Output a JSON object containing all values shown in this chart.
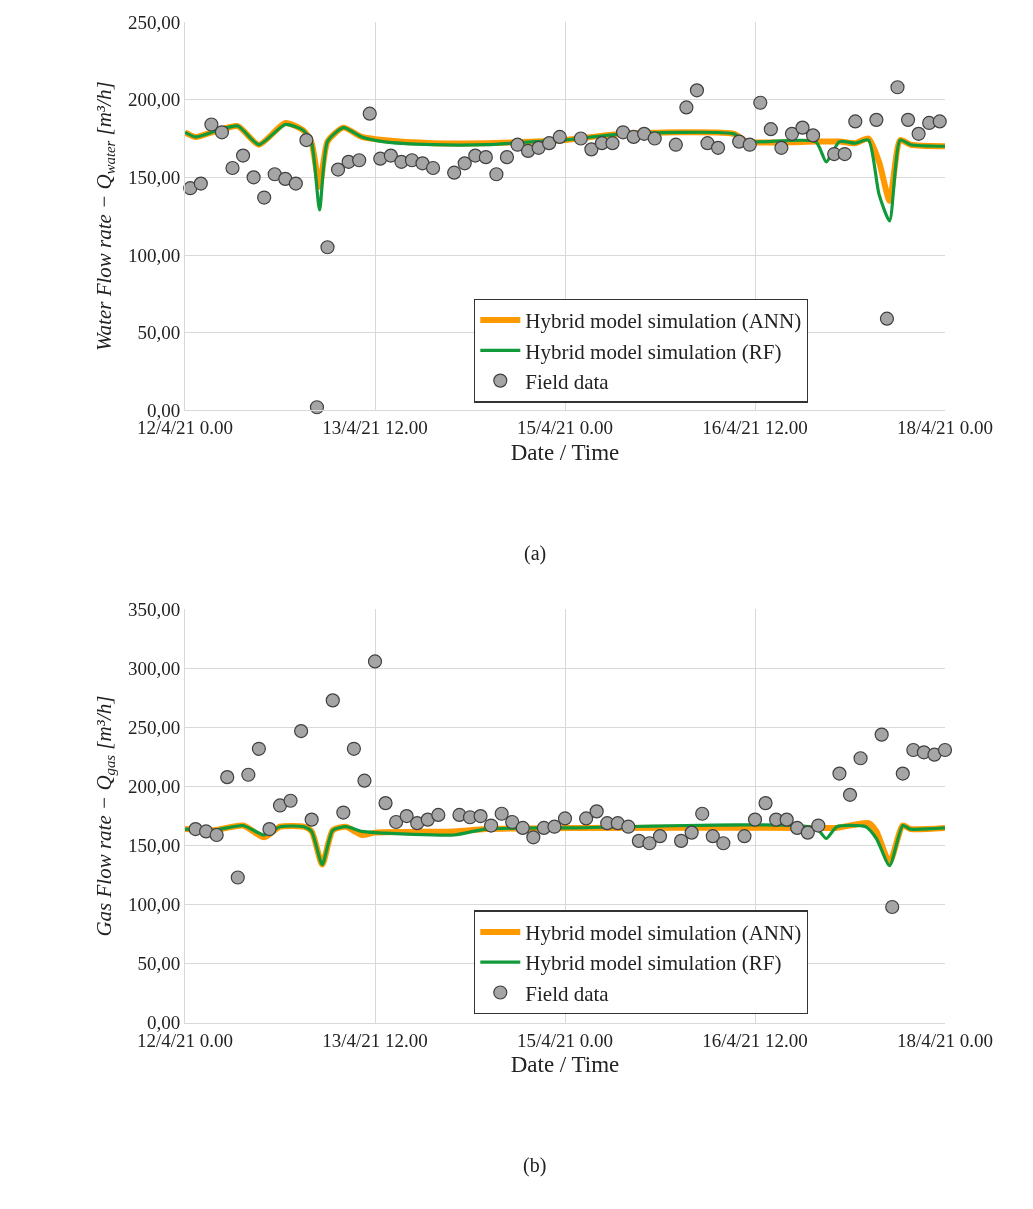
{
  "chart_data": [
    {
      "type": "line",
      "xlabel": "Date / Time",
      "ylabel": "Water Flow rate − Q$_{water}$ [m³/h]",
      "annotations": [
        "(a)"
      ],
      "xlim": [
        "--04-12T00:00",
        "--04-18T00:00"
      ],
      "xticks": [
        {
          "value": "--04-12T00:00",
          "label": "12/4/21 0.00"
        },
        {
          "value": "--04-13T12:00",
          "label": "13/4/21 12.00"
        },
        {
          "value": "--04-15T00:00",
          "label": "15/4/21 0.00"
        },
        {
          "value": "--04-16T12:00",
          "label": "16/4/21 12.00"
        },
        {
          "value": "--04-18T00:00",
          "label": "18/4/21 0.00"
        }
      ],
      "ylim": [
        0,
        250
      ],
      "yticks": [
        {
          "value": 0,
          "label": "0,00"
        },
        {
          "value": 50,
          "label": "50,00"
        },
        {
          "value": 100,
          "label": "100,00"
        },
        {
          "value": 150,
          "label": "150,00"
        },
        {
          "value": 200,
          "label": "200,00"
        },
        {
          "value": 250,
          "label": "250,00"
        }
      ],
      "grid": true,
      "legend": "bottom",
      "line_style": "solid",
      "series": [
        {
          "name": "Hybrid model simulation (ANN)",
          "type": "line",
          "marker": "none",
          "color": "#ff9900",
          "x": [
            "--04-12T00:00",
            "--04-12T02:00",
            "--04-12T06:00",
            "--04-12T10:00",
            "--04-12T14:00",
            "--04-12T19:00",
            "--04-12T22:30",
            "--04-13T00:00",
            "--04-13T01:30",
            "--04-13T03:00",
            "--04-13T06:00",
            "--04-13T09:30",
            "--04-13T13:30",
            "--04-13T23:00",
            "--04-14T09:00",
            "--04-14T18:30",
            "--04-15T00:00",
            "--04-15T11:00",
            "--04-16T08:00",
            "--04-16T10:30",
            "--04-16T23:30",
            "--04-17T04:00",
            "--04-17T07:00",
            "--04-17T09:30",
            "--04-17T11:30",
            "--04-17T13:30",
            "--04-17T15:30",
            "--04-17T17:30",
            "--04-18T00:00"
          ],
          "values": [
            179,
            176,
            180,
            183,
            171,
            185,
            180,
            172,
            144,
            173,
            182,
            176,
            174,
            172,
            172,
            173,
            174,
            178,
            178,
            173,
            173,
            173,
            172,
            175,
            160,
            135,
            174,
            171,
            170
          ]
        },
        {
          "name": "Hybrid model simulation (RF)",
          "type": "line",
          "marker": "none",
          "color": "#109a3a",
          "x": [
            "--04-12T00:00",
            "--04-12T02:00",
            "--04-12T06:00",
            "--04-12T10:00",
            "--04-12T14:00",
            "--04-12T19:00",
            "--04-12T22:30",
            "--04-13T00:00",
            "--04-13T01:30",
            "--04-13T03:00",
            "--04-13T06:00",
            "--04-13T09:30",
            "--04-13T13:30",
            "--04-13T23:00",
            "--04-14T09:00",
            "--04-14T18:30",
            "--04-15T00:00",
            "--04-15T11:00",
            "--04-16T08:00",
            "--04-16T10:30",
            "--04-16T23:30",
            "--04-17T01:30",
            "--04-17T04:00",
            "--04-17T07:00",
            "--04-17T09:30",
            "--04-17T11:30",
            "--04-17T13:30",
            "--04-17T15:30",
            "--04-17T17:30",
            "--04-18T00:00"
          ],
          "values": [
            179,
            176,
            180,
            183,
            171,
            184,
            180,
            172,
            129,
            173,
            182,
            176,
            173,
            171,
            171,
            173,
            174,
            178,
            178,
            173,
            173,
            160,
            173,
            172,
            174,
            139,
            122,
            174,
            171,
            170
          ]
        },
        {
          "name": "Field data",
          "type": "scatter",
          "marker": "circle",
          "color": "#a5a5a5",
          "x": [
            "--04-12T01:00",
            "--04-12T03:00",
            "--04-12T05:00",
            "--04-12T07:00",
            "--04-12T09:00",
            "--04-12T11:00",
            "--04-12T13:00",
            "--04-12T15:00",
            "--04-12T17:00",
            "--04-12T19:00",
            "--04-12T21:00",
            "--04-12T23:00",
            "--04-13T01:00",
            "--04-13T03:00",
            "--04-13T05:00",
            "--04-13T07:00",
            "--04-13T09:00",
            "--04-13T11:00",
            "--04-13T13:00",
            "--04-13T15:00",
            "--04-13T17:00",
            "--04-13T19:00",
            "--04-13T21:00",
            "--04-13T23:00",
            "--04-14T03:00",
            "--04-14T05:00",
            "--04-14T07:00",
            "--04-14T09:00",
            "--04-14T11:00",
            "--04-14T13:00",
            "--04-14T15:00",
            "--04-14T17:00",
            "--04-14T19:00",
            "--04-14T21:00",
            "--04-14T23:00",
            "--04-15T03:00",
            "--04-15T05:00",
            "--04-15T07:00",
            "--04-15T09:00",
            "--04-15T11:00",
            "--04-15T13:00",
            "--04-15T15:00",
            "--04-15T17:00",
            "--04-15T21:00",
            "--04-15T23:00",
            "--04-16T01:00",
            "--04-16T03:00",
            "--04-16T05:00",
            "--04-16T09:00",
            "--04-16T11:00",
            "--04-16T13:00",
            "--04-16T15:00",
            "--04-16T17:00",
            "--04-16T19:00",
            "--04-16T21:00",
            "--04-16T23:00",
            "--04-17T03:00",
            "--04-17T05:00",
            "--04-17T07:00",
            "--04-17T11:00",
            "--04-17T13:00",
            "--04-17T15:00",
            "--04-17T17:00",
            "--04-17T19:00",
            "--04-17T21:00",
            "--04-17T23:00"
          ],
          "values": [
            143,
            146,
            184,
            179,
            156,
            164,
            150,
            137,
            152,
            149,
            146,
            174,
            2,
            105,
            155,
            160,
            161,
            191,
            162,
            164,
            160,
            161,
            159,
            156,
            153,
            159,
            164,
            163,
            152,
            163,
            171,
            167,
            169,
            172,
            176,
            175,
            168,
            172,
            172,
            179,
            176,
            178,
            175,
            171,
            195,
            206,
            172,
            169,
            173,
            171,
            198,
            181,
            169,
            178,
            182,
            177,
            165,
            165,
            186,
            187,
            59,
            208,
            187,
            178,
            185,
            186
          ]
        }
      ]
    },
    {
      "type": "line",
      "xlabel": "Date / Time",
      "ylabel": "Gas Flow rate − Q$_{gas}$ [m³/h]",
      "annotations": [
        "(b)"
      ],
      "xlim": [
        "--04-12T00:00",
        "--04-18T00:00"
      ],
      "xticks": [
        {
          "value": "--04-12T00:00",
          "label": "12/4/21 0.00"
        },
        {
          "value": "--04-13T12:00",
          "label": "13/4/21 12.00"
        },
        {
          "value": "--04-15T00:00",
          "label": "15/4/21 0.00"
        },
        {
          "value": "--04-16T12:00",
          "label": "16/4/21 12.00"
        },
        {
          "value": "--04-18T00:00",
          "label": "18/4/21 0.00"
        }
      ],
      "ylim": [
        0,
        350
      ],
      "yticks": [
        {
          "value": 0,
          "label": "0,00"
        },
        {
          "value": 50,
          "label": "50,00"
        },
        {
          "value": 100,
          "label": "100,00"
        },
        {
          "value": 150,
          "label": "150,00"
        },
        {
          "value": 200,
          "label": "200,00"
        },
        {
          "value": 250,
          "label": "250,00"
        },
        {
          "value": 300,
          "label": "300,00"
        },
        {
          "value": 350,
          "label": "350,00"
        }
      ],
      "grid": true,
      "legend": "bottom",
      "line_style": "solid",
      "series": [
        {
          "name": "Hybrid model simulation (ANN)",
          "type": "line",
          "marker": "none",
          "color": "#ff9900",
          "x": [
            "--04-12T00:00",
            "--04-12T05:30",
            "--04-12T11:00",
            "--04-12T15:00",
            "--04-12T18:00",
            "--04-12T22:30",
            "--04-13T00:00",
            "--04-13T02:00",
            "--04-13T04:00",
            "--04-13T06:30",
            "--04-13T09:30",
            "--04-13T12:00",
            "--04-14T03:00",
            "--04-14T09:00",
            "--04-15T01:00",
            "--04-16T23:30",
            "--04-17T03:30",
            "--04-17T09:30",
            "--04-17T11:00",
            "--04-17T13:30",
            "--04-17T16:00",
            "--04-17T17:30",
            "--04-18T00:00"
          ],
          "values": [
            164,
            163,
            167,
            157,
            166,
            166,
            162,
            134,
            163,
            166,
            159,
            161,
            162,
            164,
            165,
            165,
            165,
            169,
            162,
            136,
            167,
            164,
            165
          ]
        },
        {
          "name": "Hybrid model simulation (RF)",
          "type": "line",
          "marker": "none",
          "color": "#109a3a",
          "x": [
            "--04-12T00:00",
            "--04-12T05:30",
            "--04-12T11:00",
            "--04-12T15:00",
            "--04-12T18:00",
            "--04-12T22:30",
            "--04-13T00:00",
            "--04-13T02:00",
            "--04-13T04:00",
            "--04-13T06:30",
            "--04-13T09:30",
            "--04-13T12:00",
            "--04-14T03:00",
            "--04-14T09:00",
            "--04-15T01:00",
            "--04-16T23:30",
            "--04-17T01:30",
            "--04-17T03:30",
            "--04-17T09:00",
            "--04-17T11:00",
            "--04-17T13:30",
            "--04-17T16:00",
            "--04-17T17:30",
            "--04-18T00:00"
          ],
          "values": [
            164,
            163,
            167,
            159,
            166,
            166,
            162,
            134,
            163,
            166,
            162,
            161,
            159,
            164,
            165,
            165,
            156,
            166,
            166,
            156,
            133,
            167,
            164,
            165
          ]
        },
        {
          "name": "Field data",
          "type": "scatter",
          "marker": "circle",
          "color": "#a5a5a5",
          "x": [
            "--04-12T02:00",
            "--04-12T04:00",
            "--04-12T06:00",
            "--04-12T08:00",
            "--04-12T10:00",
            "--04-12T12:00",
            "--04-12T14:00",
            "--04-12T16:00",
            "--04-12T18:00",
            "--04-12T20:00",
            "--04-12T22:00",
            "--04-13T00:00",
            "--04-13T04:00",
            "--04-13T06:00",
            "--04-13T08:00",
            "--04-13T10:00",
            "--04-13T12:00",
            "--04-13T14:00",
            "--04-13T16:00",
            "--04-13T18:00",
            "--04-13T20:00",
            "--04-13T22:00",
            "--04-14T00:00",
            "--04-14T04:00",
            "--04-14T06:00",
            "--04-14T08:00",
            "--04-14T10:00",
            "--04-14T12:00",
            "--04-14T14:00",
            "--04-14T16:00",
            "--04-14T18:00",
            "--04-14T20:00",
            "--04-14T22:00",
            "--04-15T00:00",
            "--04-15T04:00",
            "--04-15T06:00",
            "--04-15T08:00",
            "--04-15T10:00",
            "--04-15T12:00",
            "--04-15T14:00",
            "--04-15T16:00",
            "--04-15T18:00",
            "--04-15T22:00",
            "--04-16T00:00",
            "--04-16T02:00",
            "--04-16T04:00",
            "--04-16T06:00",
            "--04-16T10:00",
            "--04-16T12:00",
            "--04-16T14:00",
            "--04-16T16:00",
            "--04-16T18:00",
            "--04-16T20:00",
            "--04-16T22:00",
            "--04-17T00:00",
            "--04-17T04:00",
            "--04-17T06:00",
            "--04-17T08:00",
            "--04-17T12:00",
            "--04-17T14:00",
            "--04-17T16:00",
            "--04-17T18:00",
            "--04-17T20:00",
            "--04-17T22:00",
            "--04-18T00:00"
          ],
          "values": [
            164,
            162,
            159,
            208,
            123,
            210,
            232,
            164,
            184,
            188,
            247,
            172,
            273,
            178,
            232,
            205,
            306,
            186,
            170,
            175,
            169,
            172,
            176,
            176,
            174,
            175,
            167,
            177,
            170,
            165,
            157,
            165,
            166,
            173,
            173,
            179,
            169,
            169,
            166,
            154,
            152,
            158,
            154,
            161,
            177,
            158,
            152,
            158,
            172,
            186,
            172,
            172,
            165,
            161,
            167,
            211,
            193,
            224,
            244,
            98,
            211,
            231,
            229,
            227,
            231
          ]
        }
      ]
    }
  ]
}
